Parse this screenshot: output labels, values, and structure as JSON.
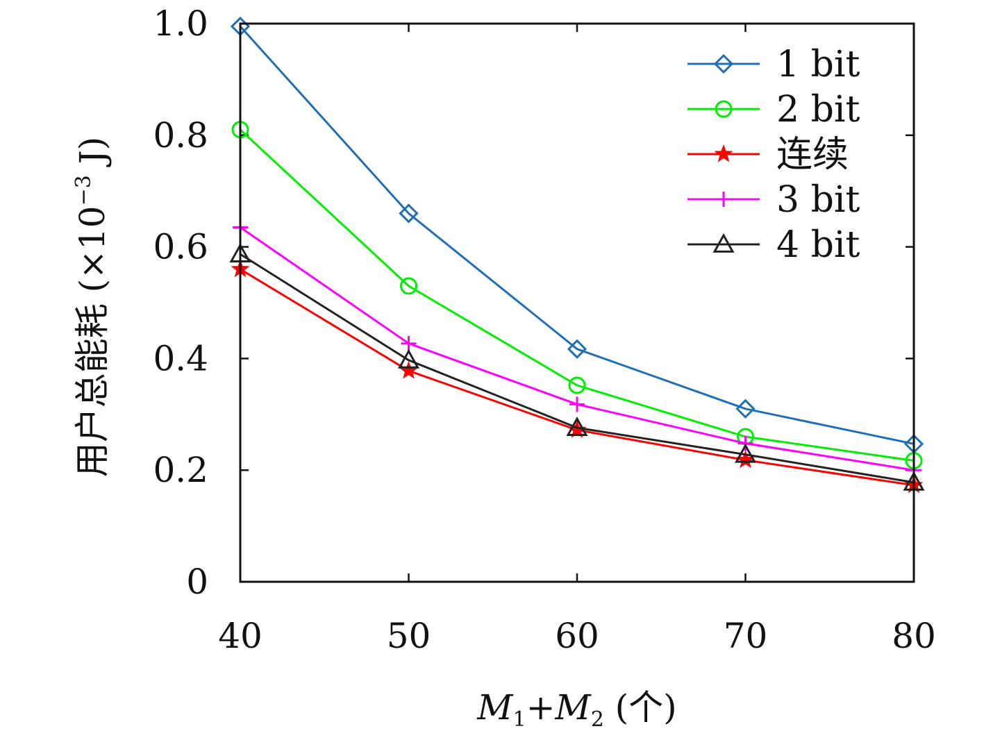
{
  "chart_data": {
    "type": "line",
    "title": "",
    "xlabel": {
      "base1": "M",
      "sub1": "1",
      "plus": "+",
      "base2": "M",
      "sub2": "2",
      "unit": " (个)"
    },
    "ylabel": {
      "text": "用户总能耗 (×10",
      "exp": "−3",
      "unit": " J)"
    },
    "x": [
      40,
      50,
      60,
      70,
      80
    ],
    "xlim": [
      40,
      80
    ],
    "ylim": [
      0,
      1.0
    ],
    "xticks": [
      "40",
      "50",
      "60",
      "70",
      "80"
    ],
    "yticks": [
      {
        "value": 0,
        "label": "0"
      },
      {
        "value": 0.2,
        "label": "0.2"
      },
      {
        "value": 0.4,
        "label": "0.4"
      },
      {
        "value": 0.6,
        "label": "0.6"
      },
      {
        "value": 0.8,
        "label": "0.8"
      },
      {
        "value": 1.0,
        "label": "1.0"
      }
    ],
    "legend_position": "top-right",
    "series": [
      {
        "name": "1 bit",
        "color": "#1f6fb5",
        "marker": "diamond",
        "values": [
          0.995,
          0.66,
          0.417,
          0.31,
          0.247
        ]
      },
      {
        "name": "2 bit",
        "color": "#00ee00",
        "marker": "circle",
        "values": [
          0.81,
          0.53,
          0.352,
          0.26,
          0.217
        ]
      },
      {
        "name": "连续",
        "color": "#ff0000",
        "marker": "star",
        "values": [
          0.56,
          0.378,
          0.272,
          0.218,
          0.173
        ]
      },
      {
        "name": "3 bit",
        "color": "#ff00ff",
        "marker": "plus",
        "values": [
          0.635,
          0.427,
          0.318,
          0.248,
          0.2
        ]
      },
      {
        "name": "4 bit",
        "color": "#222222",
        "marker": "triangle",
        "values": [
          0.587,
          0.397,
          0.276,
          0.228,
          0.178
        ]
      }
    ]
  }
}
